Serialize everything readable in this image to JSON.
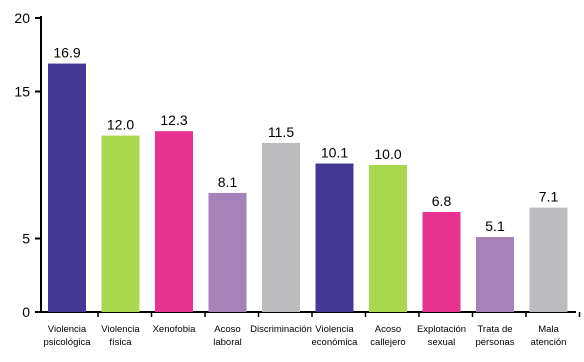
{
  "chart_data": {
    "type": "bar",
    "title": "",
    "xlabel": "",
    "ylabel": "",
    "ylim": [
      0,
      20
    ],
    "yticks": [
      0,
      5,
      15,
      20
    ],
    "grid": false,
    "legend": "none",
    "categories": [
      [
        "Violencia",
        "psicológica"
      ],
      [
        "Violencia",
        "física"
      ],
      [
        "Xenofobia"
      ],
      [
        "Acoso",
        "laboral"
      ],
      [
        "Discriminación"
      ],
      [
        "Violencia",
        "económica"
      ],
      [
        "Acoso",
        "callejero"
      ],
      [
        "Explotación",
        "sexual"
      ],
      [
        "Trata de",
        "personas"
      ],
      [
        "Mala",
        "atención"
      ]
    ],
    "values": [
      16.9,
      12.0,
      12.3,
      8.1,
      11.5,
      10.1,
      10.0,
      6.8,
      5.1,
      7.1
    ],
    "value_labels": [
      "16.9",
      "12.0",
      "12.3",
      "8.1",
      "11.5",
      "10.1",
      "10.0",
      "6.8",
      "5.1",
      "7.1"
    ],
    "colors": [
      "#433893",
      "#a8d84e",
      "#e8328f",
      "#a782b8",
      "#bcbcbe",
      "#433893",
      "#a8d84e",
      "#e8328f",
      "#a782b8",
      "#bcbcbe"
    ]
  }
}
